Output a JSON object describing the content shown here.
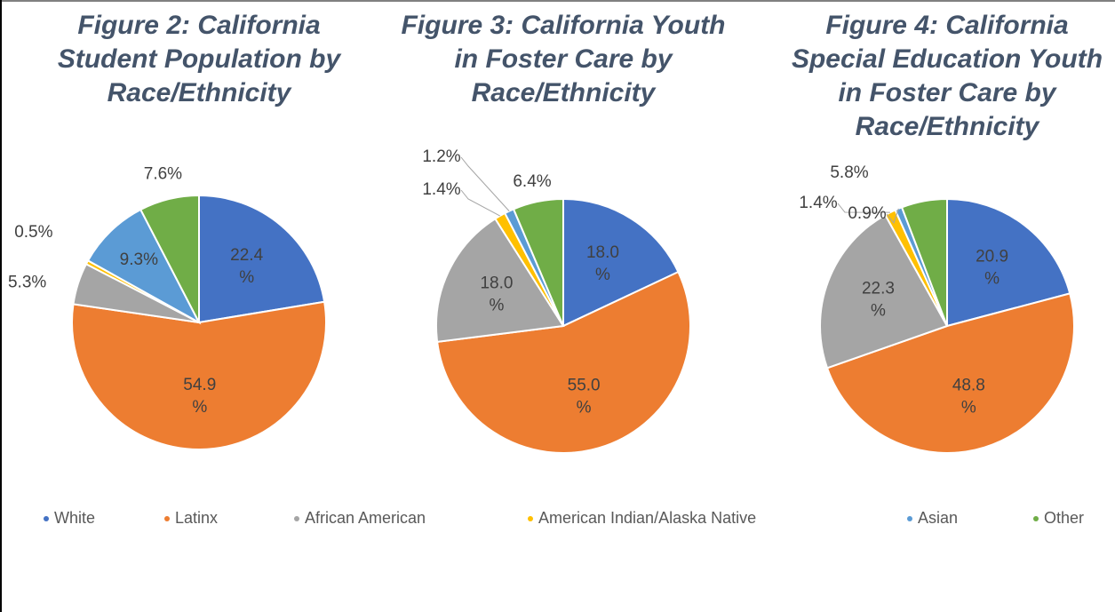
{
  "chart_data": [
    {
      "type": "pie",
      "title": [
        "Figure 2: California",
        "Student Population by",
        "Race/Ethnicity"
      ],
      "categories": [
        "White",
        "Latinx",
        "African American",
        "American Indian/Alaska Native",
        "Asian",
        "Other"
      ],
      "colors": [
        "#4472c4",
        "#ed7d31",
        "#a5a5a5",
        "#ffc000",
        "#5b9bd5",
        "#70ad47"
      ],
      "values": [
        22.4,
        54.9,
        5.3,
        0.5,
        9.3,
        7.6
      ],
      "value_labels": [
        "22.4 %",
        "54.9 %",
        "5.3%",
        "0.5%",
        "9.3%",
        "7.6%"
      ]
    },
    {
      "type": "pie",
      "title": [
        "Figure 3: California Youth",
        "in Foster Care by",
        "Race/Ethnicity"
      ],
      "categories": [
        "White",
        "Latinx",
        "African American",
        "American Indian/Alaska Native",
        "Asian",
        "Other"
      ],
      "colors": [
        "#4472c4",
        "#ed7d31",
        "#a5a5a5",
        "#ffc000",
        "#5b9bd5",
        "#70ad47"
      ],
      "values": [
        18.0,
        55.0,
        18.0,
        1.4,
        1.2,
        6.4
      ],
      "value_labels": [
        "18.0 %",
        "55.0 %",
        "18.0 %",
        "1.4%",
        "1.2%",
        "6.4%"
      ]
    },
    {
      "type": "pie",
      "title": [
        "Figure 4: California",
        "Special Education Youth",
        "in Foster Care by",
        "Race/Ethnicity"
      ],
      "categories": [
        "White",
        "Latinx",
        "African American",
        "American Indian/Alaska Native",
        "Asian",
        "Other"
      ],
      "colors": [
        "#4472c4",
        "#ed7d31",
        "#a5a5a5",
        "#ffc000",
        "#5b9bd5",
        "#70ad47"
      ],
      "values": [
        20.9,
        48.8,
        22.3,
        1.4,
        0.9,
        5.8
      ],
      "value_labels": [
        "20.9 %",
        "48.8 %",
        "22.3 %",
        "1.4%",
        "0.9%",
        "5.8%"
      ]
    }
  ]
}
